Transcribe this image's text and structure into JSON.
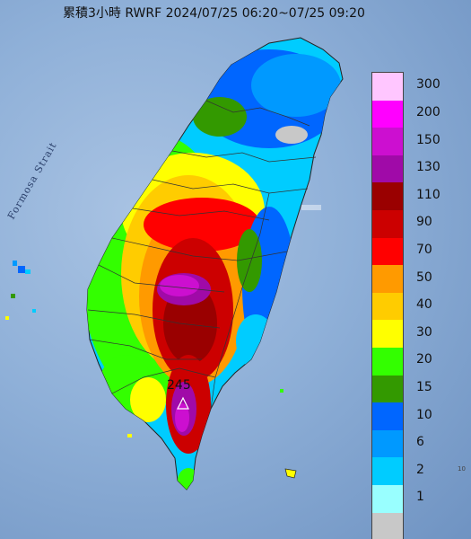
{
  "title": "累積3小時 RWRF 2024/07/25 06:20~07/25 09:20",
  "strait_label": "Formosa Strait",
  "max_value": "245",
  "corner_mark": "10",
  "legend": [
    {
      "label": "300",
      "color": "#ffc6ff"
    },
    {
      "label": "200",
      "color": "#ff00ff"
    },
    {
      "label": "150",
      "color": "#cc0fd0"
    },
    {
      "label": "130",
      "color": "#a00aa8"
    },
    {
      "label": "110",
      "color": "#9a0000"
    },
    {
      "label": "90",
      "color": "#cc0000"
    },
    {
      "label": "70",
      "color": "#ff0000"
    },
    {
      "label": "50",
      "color": "#ff9a00"
    },
    {
      "label": "40",
      "color": "#ffcc00"
    },
    {
      "label": "30",
      "color": "#ffff00"
    },
    {
      "label": "20",
      "color": "#33ff00"
    },
    {
      "label": "15",
      "color": "#339900"
    },
    {
      "label": "10",
      "color": "#0066ff"
    },
    {
      "label": "6",
      "color": "#0099ff"
    },
    {
      "label": "2",
      "color": "#00ccff"
    },
    {
      "label": "1",
      "color": "#99ffff"
    },
    {
      "label": "",
      "color": "#c8c8c8"
    }
  ]
}
